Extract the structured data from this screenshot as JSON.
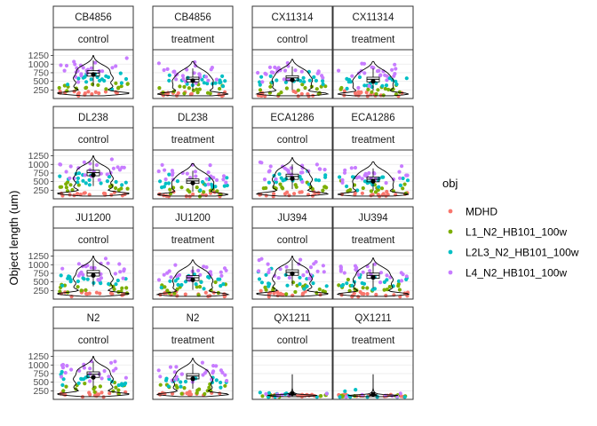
{
  "chart_data": {
    "type": "scatter",
    "ylabel": "Object length (um)",
    "xlabel": "",
    "ylim": [
      0,
      1420
    ],
    "y_ticks": [
      250,
      500,
      750,
      1000,
      1250
    ],
    "grid": true,
    "legend": {
      "title": "obj",
      "placement": "right",
      "entries": [
        {
          "label": "MDHD",
          "color": "#F8766D"
        },
        {
          "label": "L1_N2_HB101_100w",
          "color": "#7CAE00"
        },
        {
          "label": "L2L3_N2_HB101_100w",
          "color": "#00BFC4"
        },
        {
          "label": "L4_N2_HB101_100w",
          "color": "#C77CFF"
        }
      ]
    },
    "facets": [
      {
        "strain": "CB4856",
        "condition": "control",
        "mean": 700,
        "median": 740,
        "scale": 1.0
      },
      {
        "strain": "CB4856",
        "condition": "treatment",
        "mean": 520,
        "median": 560,
        "scale": 0.85
      },
      {
        "strain": "CX11314",
        "condition": "control",
        "mean": 540,
        "median": 600,
        "scale": 0.9
      },
      {
        "strain": "CX11314",
        "condition": "treatment",
        "mean": 500,
        "median": 560,
        "scale": 0.85
      },
      {
        "strain": "DL238",
        "condition": "control",
        "mean": 690,
        "median": 760,
        "scale": 1.0
      },
      {
        "strain": "DL238",
        "condition": "treatment",
        "mean": 460,
        "median": 520,
        "scale": 0.8
      },
      {
        "strain": "ECA1286",
        "condition": "control",
        "mean": 590,
        "median": 650,
        "scale": 0.95
      },
      {
        "strain": "ECA1286",
        "condition": "treatment",
        "mean": 510,
        "median": 570,
        "scale": 0.85
      },
      {
        "strain": "JU1200",
        "condition": "control",
        "mean": 690,
        "median": 760,
        "scale": 1.0
      },
      {
        "strain": "JU1200",
        "condition": "treatment",
        "mean": 560,
        "median": 620,
        "scale": 0.9
      },
      {
        "strain": "JU394",
        "condition": "control",
        "mean": 740,
        "median": 780,
        "scale": 1.0
      },
      {
        "strain": "JU394",
        "condition": "treatment",
        "mean": 630,
        "median": 690,
        "scale": 0.95
      },
      {
        "strain": "N2",
        "condition": "control",
        "mean": 640,
        "median": 730,
        "scale": 1.0
      },
      {
        "strain": "N2",
        "condition": "treatment",
        "mean": 600,
        "median": 680,
        "scale": 0.95
      },
      {
        "strain": "QX1211",
        "condition": "control",
        "mean": 170,
        "median": 140,
        "scale": 0.18
      },
      {
        "strain": "QX1211",
        "condition": "treatment",
        "mean": 150,
        "median": 130,
        "scale": 0.14
      }
    ]
  }
}
